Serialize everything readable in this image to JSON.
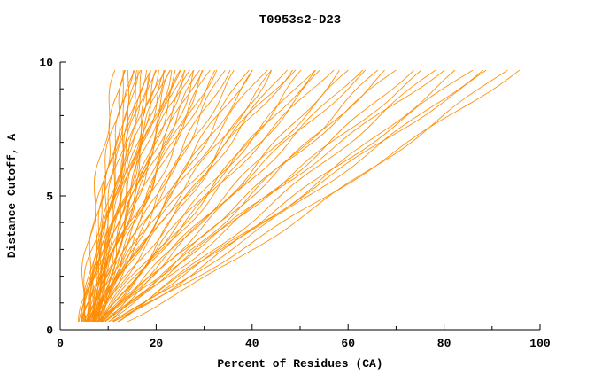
{
  "chart_data": {
    "type": "line",
    "title": "T0953s2-D23",
    "xlabel": "Percent of Residues (CA)",
    "ylabel": "Distance Cutoff, A",
    "xlim": [
      0,
      100
    ],
    "ylim": [
      0,
      10
    ],
    "x_ticks": [
      0,
      20,
      40,
      60,
      80,
      100
    ],
    "x_minor_step": 10,
    "y_ticks": [
      0,
      5,
      10
    ],
    "y_minor_step": 1,
    "grid": false,
    "legend": "none",
    "line_color": "#FF8C00",
    "axis_color": "#000000",
    "y_sample_range": [
      0.3,
      9.7
    ],
    "curves": [
      [
        4,
        12,
        1.3
      ],
      [
        5,
        13,
        1.22
      ],
      [
        4.5,
        14,
        1.28
      ],
      [
        6,
        14,
        1.15
      ],
      [
        5,
        15,
        1.2
      ],
      [
        6.5,
        15,
        1.1
      ],
      [
        4,
        16,
        1.25
      ],
      [
        7,
        16,
        1.05
      ],
      [
        5.5,
        17,
        1.18
      ],
      [
        6,
        17,
        1.3
      ],
      [
        4.5,
        18,
        1.12
      ],
      [
        7.5,
        18,
        1.22
      ],
      [
        5,
        19,
        1.08
      ],
      [
        6,
        19,
        1.28
      ],
      [
        5.5,
        20,
        1.15
      ],
      [
        7,
        20,
        1.02
      ],
      [
        4,
        21,
        1.2
      ],
      [
        6.5,
        21,
        1.1
      ],
      [
        5,
        22,
        1.25
      ],
      [
        7.5,
        22,
        1.05
      ],
      [
        6,
        23,
        1.18
      ],
      [
        5.5,
        23,
        1.3
      ],
      [
        4.5,
        24,
        1.08
      ],
      [
        7,
        24,
        1.2
      ],
      [
        6,
        25,
        1.0
      ],
      [
        5,
        25,
        1.26
      ],
      [
        6.5,
        26,
        1.12
      ],
      [
        7.5,
        26,
        1.22
      ],
      [
        5.5,
        27,
        1.05
      ],
      [
        6,
        28,
        1.18
      ],
      [
        4.5,
        28,
        1.28
      ],
      [
        7,
        29,
        1.0
      ],
      [
        5,
        30,
        1.15
      ],
      [
        6.5,
        30,
        1.25
      ],
      [
        5.5,
        31,
        1.05
      ],
      [
        7.5,
        32,
        1.18
      ],
      [
        6,
        33,
        1.1
      ],
      [
        5,
        34,
        1.22
      ],
      [
        6.5,
        35,
        1.0
      ],
      [
        7,
        36,
        1.15
      ],
      [
        5.5,
        38,
        1.12
      ],
      [
        6,
        40,
        1.0
      ],
      [
        7,
        41,
        1.2
      ],
      [
        5,
        42,
        1.08
      ],
      [
        6.5,
        44,
        1.15
      ],
      [
        7.5,
        45,
        0.95
      ],
      [
        6,
        46,
        1.1
      ],
      [
        5.5,
        48,
        1.0
      ],
      [
        7,
        50,
        1.18
      ],
      [
        6,
        52,
        0.92
      ],
      [
        6.5,
        54,
        1.05
      ],
      [
        8,
        55,
        1.12
      ],
      [
        5.5,
        56,
        0.95
      ],
      [
        7,
        58,
        1.08
      ],
      [
        6,
        60,
        0.9
      ],
      [
        7.5,
        62,
        1.02
      ],
      [
        6.5,
        64,
        0.95
      ],
      [
        8,
        66,
        1.1
      ],
      [
        7,
        68,
        0.9
      ],
      [
        6,
        50,
        1.22
      ],
      [
        7,
        70,
        0.95
      ],
      [
        8,
        72,
        1.05
      ],
      [
        6.5,
        75,
        0.9
      ],
      [
        7.5,
        78,
        1.0
      ],
      [
        8.5,
        80,
        0.92
      ],
      [
        7,
        82,
        1.05
      ],
      [
        8,
        85,
        0.88
      ],
      [
        9,
        88,
        0.98
      ],
      [
        7.5,
        90,
        0.9
      ],
      [
        8.5,
        92,
        1.0
      ],
      [
        9,
        95,
        0.85
      ],
      [
        8,
        98,
        0.92
      ]
    ]
  }
}
